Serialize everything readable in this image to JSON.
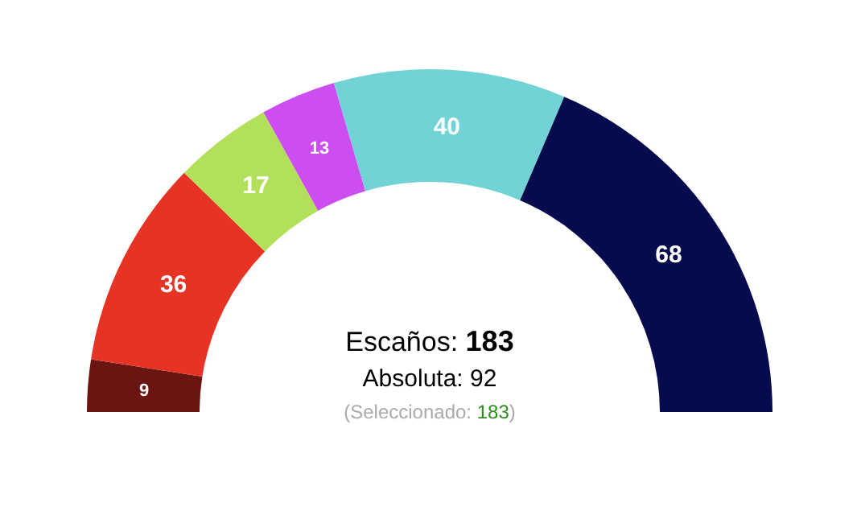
{
  "chart_data": {
    "type": "donut",
    "categories": [
      null,
      null,
      null,
      null,
      null,
      null
    ],
    "values": [
      9,
      36,
      17,
      13,
      40,
      68
    ],
    "colors": [
      "#6a1512",
      "#e63323",
      "#b3e05b",
      "#cc4ef1",
      "#72d3d7",
      "#060b4e"
    ],
    "data_labels": true,
    "annotations": [
      "Escaños: 183",
      "Absoluta: 92",
      "(Seleccionado: 183)"
    ]
  }
}
